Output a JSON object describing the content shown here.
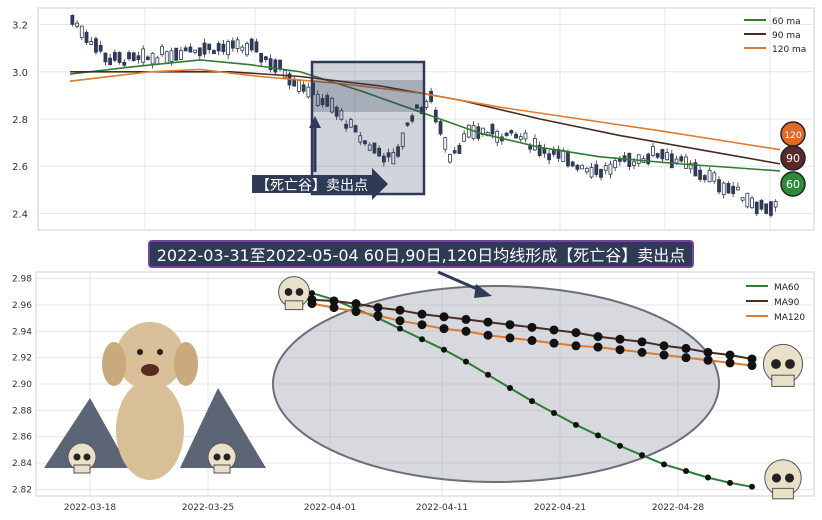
{
  "top_chart": {
    "type": "candlestick",
    "y_ticks": [
      "2.4",
      "2.6",
      "2.8",
      "3.0",
      "3.2"
    ],
    "ylim": [
      2.33,
      3.27
    ],
    "legend": [
      "60 ma",
      "90 ma",
      "120 ma"
    ],
    "badges": [
      "120",
      "90",
      "60"
    ],
    "callout_label": "【死亡谷】卖出点",
    "colors": {
      "ma60": "#2e7d32",
      "ma90": "#4a2c20",
      "ma120": "#e07a2c",
      "badge120": "#e06a2a",
      "badge90": "#5a2a2a",
      "badge60": "#2e8b3a"
    }
  },
  "annotation": "2022-03-31至2022-05-04 60日,90日,120日均线形成【死亡谷】卖出点",
  "chart_data": [
    {
      "type": "line",
      "title": "",
      "x": [
        "2022-03-31",
        "2022-04-01",
        "2022-04-06",
        "2022-04-07",
        "2022-04-08",
        "2022-04-11",
        "2022-04-12",
        "2022-04-13",
        "2022-04-14",
        "2022-04-15",
        "2022-04-18",
        "2022-04-19",
        "2022-04-20",
        "2022-04-21",
        "2022-04-22",
        "2022-04-25",
        "2022-04-26",
        "2022-04-27",
        "2022-04-28",
        "2022-04-29",
        "2022-05-04"
      ],
      "series": [
        {
          "name": "MA60",
          "values": [
            2.969,
            2.964,
            2.957,
            2.95,
            2.942,
            2.934,
            2.926,
            2.917,
            2.907,
            2.897,
            2.887,
            2.878,
            2.869,
            2.861,
            2.853,
            2.846,
            2.839,
            2.834,
            2.829,
            2.825,
            2.822
          ]
        },
        {
          "name": "MA90",
          "values": [
            2.964,
            2.963,
            2.961,
            2.958,
            2.956,
            2.953,
            2.951,
            2.949,
            2.947,
            2.945,
            2.943,
            2.941,
            2.939,
            2.936,
            2.934,
            2.932,
            2.929,
            2.927,
            2.924,
            2.922,
            2.919
          ]
        },
        {
          "name": "MA120",
          "values": [
            2.961,
            2.958,
            2.955,
            2.952,
            2.948,
            2.945,
            2.942,
            2.94,
            2.937,
            2.935,
            2.933,
            2.931,
            2.929,
            2.928,
            2.926,
            2.924,
            2.922,
            2.92,
            2.918,
            2.916,
            2.914
          ]
        }
      ],
      "y_ticks": [
        2.82,
        2.84,
        2.86,
        2.88,
        2.9,
        2.92,
        2.94,
        2.96,
        2.98
      ],
      "ylim": [
        2.815,
        2.985
      ],
      "x_ticks": [
        "2022-03-18",
        "2022-03-25",
        "2022-04-01",
        "2022-04-11",
        "2022-04-21",
        "2022-04-28"
      ],
      "legend_position": "top-right",
      "grid": true
    }
  ]
}
